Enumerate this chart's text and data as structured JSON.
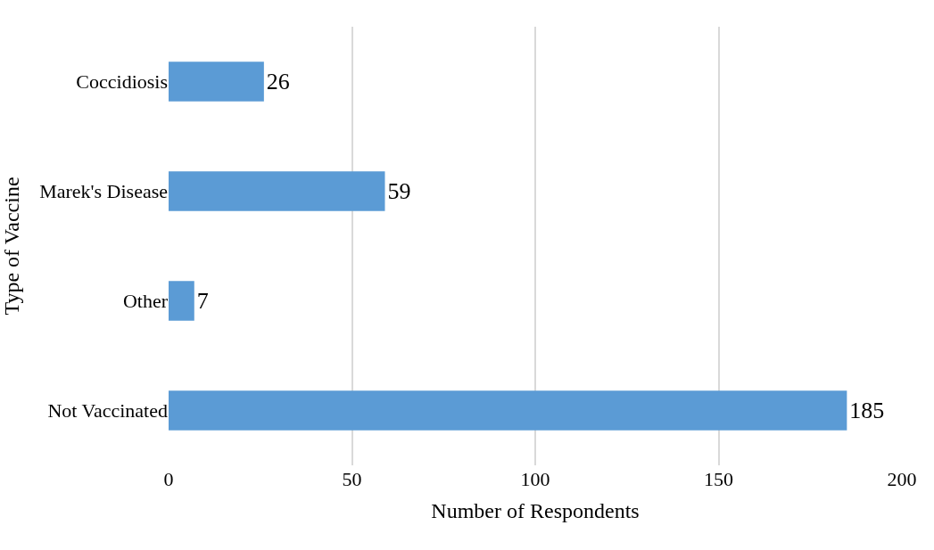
{
  "chart_data": {
    "type": "bar",
    "orientation": "horizontal",
    "categories": [
      "Coccidiosis",
      "Marek's Disease",
      "Other",
      "Not Vaccinated"
    ],
    "values": [
      26,
      59,
      7,
      185
    ],
    "color": "#5b9bd5",
    "xlabel": "Number of Respondents",
    "ylabel": "Type of Vaccine",
    "xlim": [
      0,
      200
    ],
    "xticks": [
      0,
      50,
      100,
      150,
      200
    ],
    "grid": "x",
    "data_labels": true
  }
}
